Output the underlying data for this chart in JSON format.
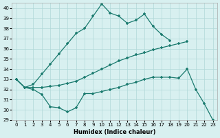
{
  "line1_x": [
    0,
    1,
    2,
    3,
    4,
    5,
    6,
    7,
    8,
    9,
    10,
    11,
    12,
    13,
    14,
    15,
    16,
    17,
    18
  ],
  "line1_y": [
    33,
    32.2,
    32.5,
    33.5,
    34.5,
    35.5,
    36.5,
    37.5,
    38,
    39.2,
    40.4,
    39.5,
    39.2,
    38.5,
    38.8,
    39.4,
    38.2,
    37.4,
    36.8
  ],
  "line2_x": [
    0,
    1,
    2,
    3,
    4,
    5,
    6,
    7,
    8,
    9,
    10,
    11,
    12,
    13,
    14,
    15,
    16,
    17,
    18,
    19,
    20
  ],
  "line2_y": [
    33,
    32.2,
    32.2,
    32.2,
    32.3,
    32.4,
    32.6,
    32.8,
    33.2,
    33.6,
    34.0,
    34.4,
    34.8,
    35.1,
    35.4,
    35.6,
    35.9,
    36.1,
    36.3,
    36.5,
    36.7
  ],
  "line3_x": [
    0,
    1,
    2,
    3,
    4,
    5,
    6,
    7,
    8,
    9,
    10,
    11,
    12,
    13,
    14,
    15,
    16,
    17,
    18,
    19,
    20,
    21,
    22,
    23
  ],
  "line3_y": [
    33,
    32.2,
    32,
    31.5,
    30.3,
    30.2,
    29.8,
    30.2,
    31.6,
    31.6,
    31.8,
    32.0,
    32.2,
    32.5,
    32.7,
    33.0,
    33.2,
    33.2,
    33.2,
    33.1,
    34.0,
    32.0,
    30.6,
    29.0
  ],
  "color": "#1a7a6e",
  "bg_color": "#d8f0f0",
  "grid_color": "#b0d8d8",
  "xlabel": "Humidex (Indice chaleur)",
  "xlim": [
    -0.5,
    23.5
  ],
  "ylim": [
    29,
    40.5
  ],
  "yticks": [
    29,
    30,
    31,
    32,
    33,
    34,
    35,
    36,
    37,
    38,
    39,
    40
  ],
  "xticks": [
    0,
    1,
    2,
    3,
    4,
    5,
    6,
    7,
    8,
    9,
    10,
    11,
    12,
    13,
    14,
    15,
    16,
    17,
    18,
    19,
    20,
    21,
    22,
    23
  ]
}
